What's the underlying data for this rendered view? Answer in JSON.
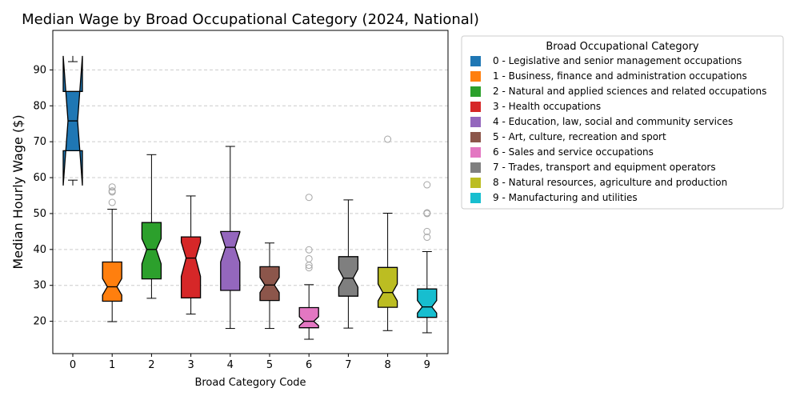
{
  "chart_data": {
    "type": "box",
    "title": "Median Wage by Broad Occupational Category (2024, National)",
    "xlabel": "Broad Category Code",
    "ylabel": "Median Hourly Wage ($)",
    "ylim": [
      11,
      101
    ],
    "yticks": [
      20,
      30,
      40,
      50,
      60,
      70,
      80,
      90
    ],
    "grid": "y-dashed",
    "notched": true,
    "legend": {
      "title": "Broad Occupational Category",
      "placement": "outside-right"
    },
    "categories": [
      "0",
      "1",
      "2",
      "3",
      "4",
      "5",
      "6",
      "7",
      "8",
      "9"
    ],
    "series": [
      {
        "code": "0",
        "name": "0 - Legislative and senior management occupations",
        "color": "#1f77b4",
        "whisker_low": 59.3,
        "q1": 67.5,
        "median": 75.8,
        "q3": 84.0,
        "whisker_high": 92.3,
        "notch_low": 57.8,
        "notch_high": 93.9,
        "outliers": []
      },
      {
        "code": "1",
        "name": "1 - Business, finance and administration occupations",
        "color": "#ff7f0e",
        "whisker_low": 19.9,
        "q1": 25.6,
        "median": 29.6,
        "q3": 36.5,
        "whisker_high": 51.2,
        "notch_low": 27.3,
        "notch_high": 31.9,
        "outliers": [
          53.1,
          56.0,
          56.3,
          57.4
        ]
      },
      {
        "code": "2",
        "name": "2 - Natural and applied sciences and related occupations",
        "color": "#2ca02c",
        "whisker_low": 26.4,
        "q1": 31.8,
        "median": 40.0,
        "q3": 47.5,
        "whisker_high": 66.4,
        "notch_low": 36.0,
        "notch_high": 43.0,
        "outliers": []
      },
      {
        "code": "3",
        "name": "3 - Health occupations",
        "color": "#d62728",
        "whisker_low": 22.0,
        "q1": 26.5,
        "median": 37.6,
        "q3": 43.5,
        "whisker_high": 54.9,
        "notch_low": 32.5,
        "notch_high": 42.0,
        "outliers": []
      },
      {
        "code": "4",
        "name": "4 - Education, law, social and community services",
        "color": "#9467bd",
        "whisker_low": 18.0,
        "q1": 28.6,
        "median": 40.6,
        "q3": 45.0,
        "whisker_high": 68.7,
        "notch_low": 36.5,
        "notch_high": 44.8,
        "outliers": []
      },
      {
        "code": "5",
        "name": "5 - Art, culture, recreation and sport",
        "color": "#8c564b",
        "whisker_low": 18.0,
        "q1": 25.8,
        "median": 30.1,
        "q3": 35.2,
        "whisker_high": 41.8,
        "notch_low": 28.0,
        "notch_high": 32.2,
        "outliers": []
      },
      {
        "code": "6",
        "name": "6 - Sales and service occupations",
        "color": "#e377c2",
        "whisker_low": 15.0,
        "q1": 18.2,
        "median": 20.0,
        "q3": 23.8,
        "whisker_high": 30.2,
        "notch_low": 18.8,
        "notch_high": 21.3,
        "outliers": [
          34.9,
          35.6,
          37.4,
          39.9,
          54.5
        ]
      },
      {
        "code": "7",
        "name": "7 - Trades, transport and equipment operators",
        "color": "#7f7f7f",
        "whisker_low": 18.1,
        "q1": 27.0,
        "median": 32.0,
        "q3": 38.0,
        "whisker_high": 53.8,
        "notch_low": 29.5,
        "notch_high": 34.5,
        "outliers": []
      },
      {
        "code": "8",
        "name": "8 - Natural resources, agriculture and production",
        "color": "#bcbd22",
        "whisker_low": 17.4,
        "q1": 23.9,
        "median": 28.0,
        "q3": 35.0,
        "whisker_high": 50.1,
        "notch_low": 25.7,
        "notch_high": 30.4,
        "outliers": [
          70.7
        ]
      },
      {
        "code": "9",
        "name": "9 - Manufacturing and utilities",
        "color": "#17becf",
        "whisker_low": 16.8,
        "q1": 21.1,
        "median": 24.0,
        "q3": 29.0,
        "whisker_high": 39.4,
        "notch_low": 22.3,
        "notch_high": 25.8,
        "outliers": [
          43.4,
          45.0,
          50.0,
          50.2,
          58.0
        ]
      }
    ]
  }
}
